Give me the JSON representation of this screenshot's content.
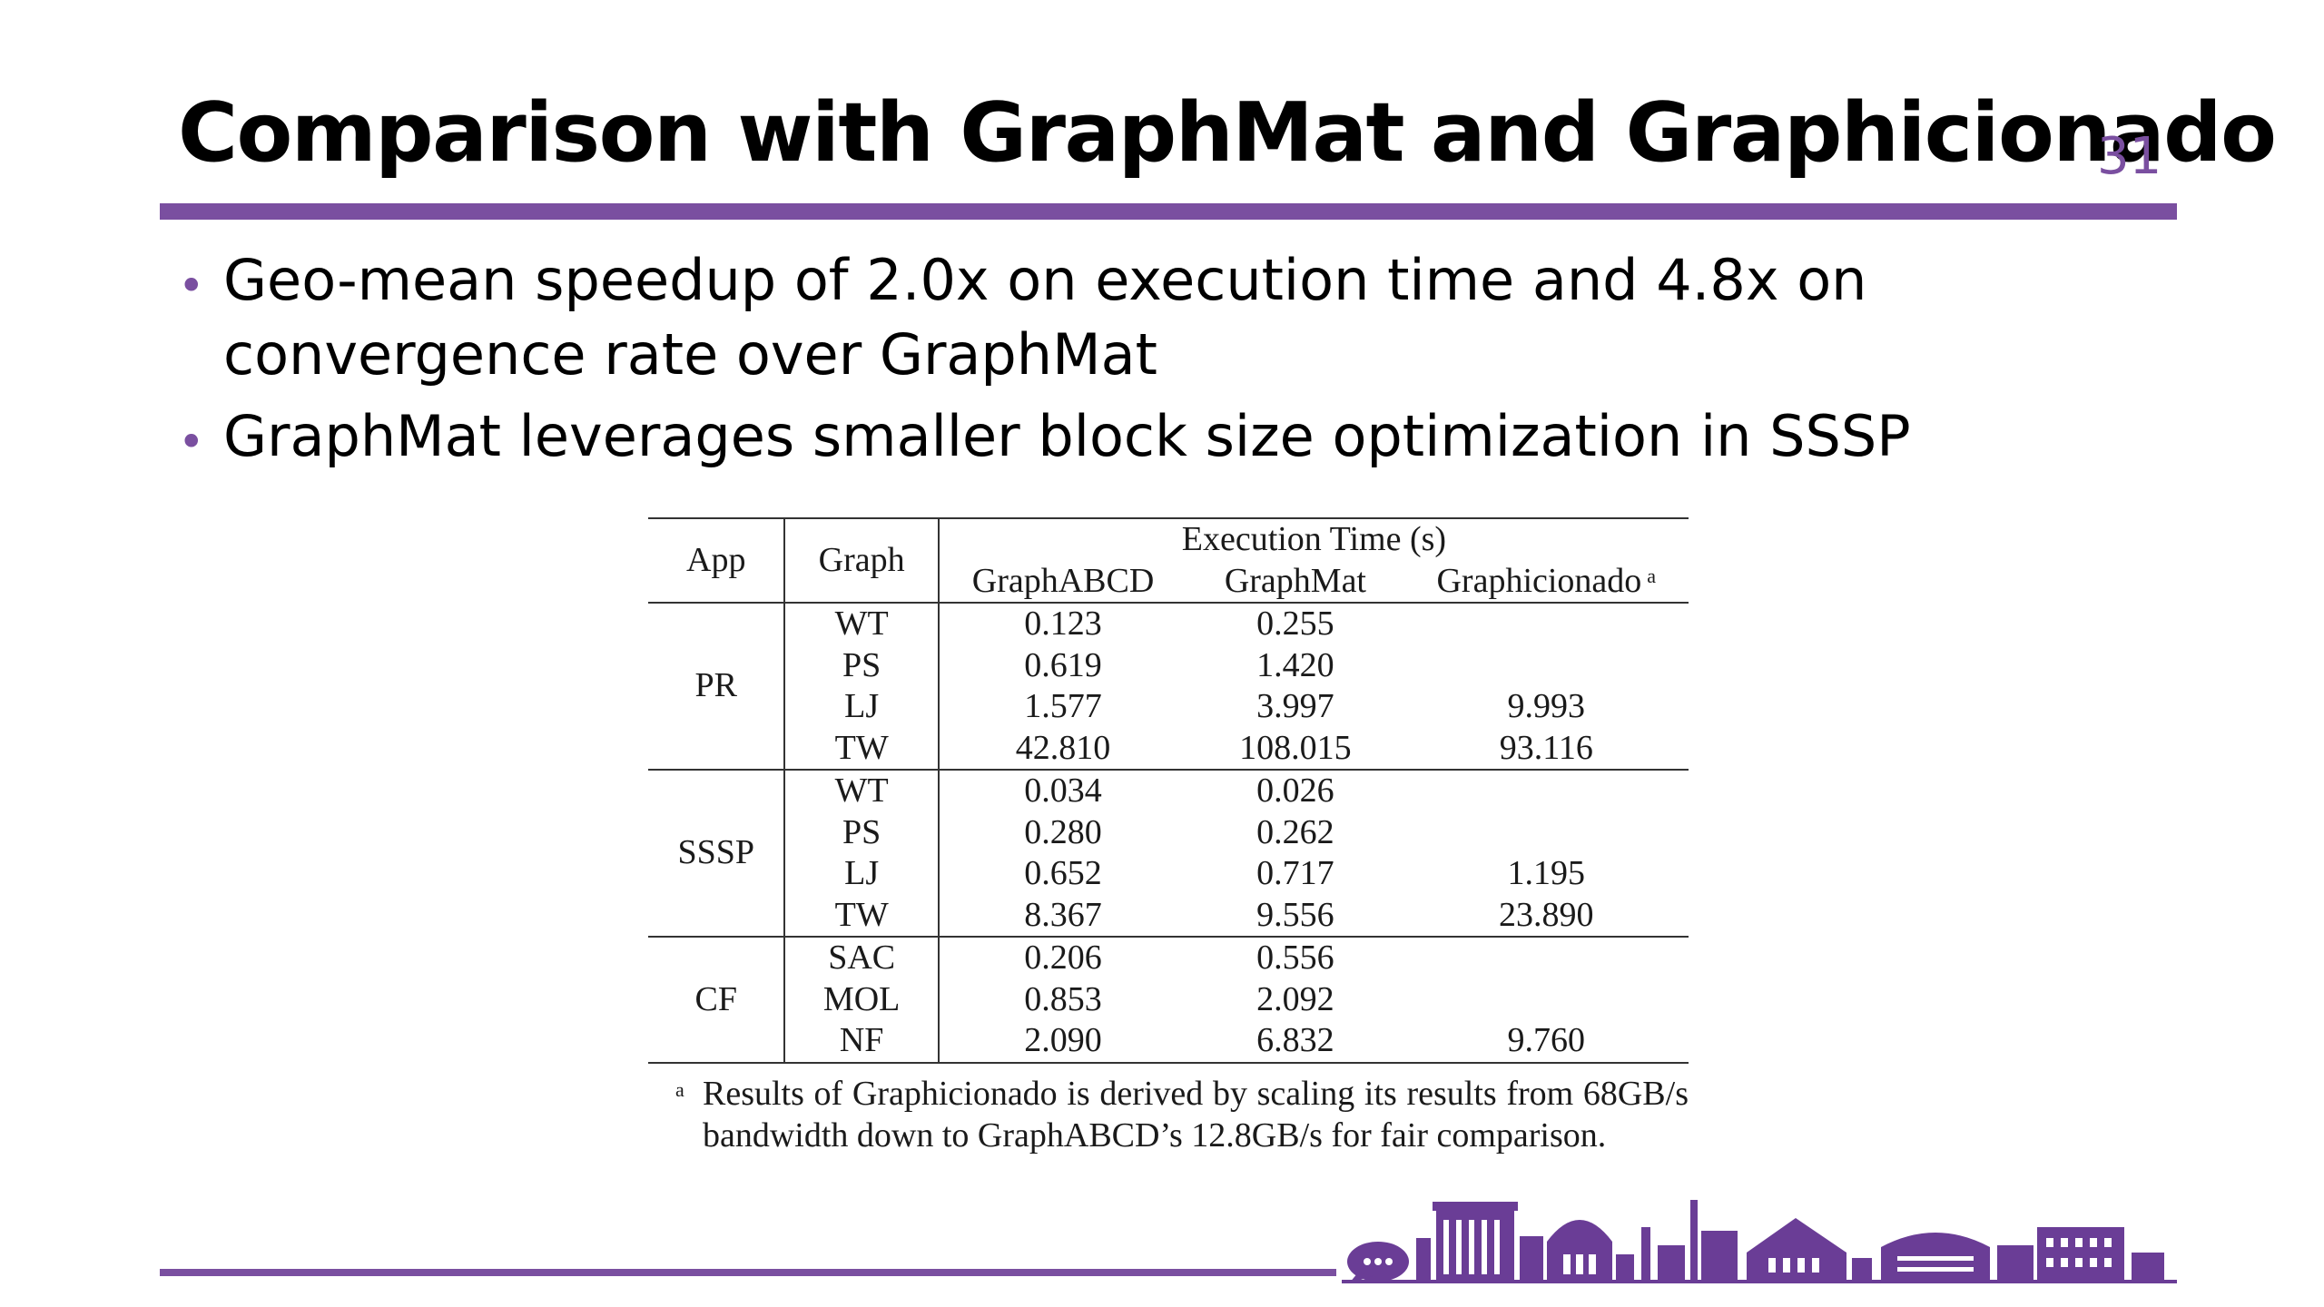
{
  "slide": {
    "title": "Comparison with GraphMat and Graphicionado",
    "page_number": "31"
  },
  "bullets": [
    {
      "text_line1": "Geo-mean speedup of 2.0x on execution time and 4.8x on",
      "text_line2": "convergence rate over GraphMat"
    },
    {
      "text_line1": "GraphMat leverages smaller block size optimization in SSSP",
      "text_line2": ""
    }
  ],
  "table": {
    "headers": {
      "app": "App",
      "graph": "Graph",
      "execution_time": "Execution Time (s)",
      "graphabcd": "GraphABCD",
      "graphmat": "GraphMat",
      "graphicionado": "Graphicionado",
      "footnote_marker": "a"
    },
    "groups": [
      {
        "app": "PR",
        "rows": [
          {
            "graph": "WT",
            "graphabcd": "0.123",
            "graphmat": "0.255",
            "graphicionado": "",
            "bold": "graphabcd"
          },
          {
            "graph": "PS",
            "graphabcd": "0.619",
            "graphmat": "1.420",
            "graphicionado": "",
            "bold": "graphabcd"
          },
          {
            "graph": "LJ",
            "graphabcd": "1.577",
            "graphmat": "3.997",
            "graphicionado": "9.993",
            "bold": "graphabcd"
          },
          {
            "graph": "TW",
            "graphabcd": "42.810",
            "graphmat": "108.015",
            "graphicionado": "93.116",
            "bold": "graphabcd"
          }
        ]
      },
      {
        "app": "SSSP",
        "rows": [
          {
            "graph": "WT",
            "graphabcd": "0.034",
            "graphmat": "0.026",
            "graphicionado": "",
            "bold": "graphmat"
          },
          {
            "graph": "PS",
            "graphabcd": "0.280",
            "graphmat": "0.262",
            "graphicionado": "",
            "bold": "graphmat"
          },
          {
            "graph": "LJ",
            "graphabcd": "0.652",
            "graphmat": "0.717",
            "graphicionado": "1.195",
            "bold": "graphabcd"
          },
          {
            "graph": "TW",
            "graphabcd": "8.367",
            "graphmat": "9.556",
            "graphicionado": "23.890",
            "bold": "graphabcd"
          }
        ]
      },
      {
        "app": "CF",
        "rows": [
          {
            "graph": "SAC",
            "graphabcd": "0.206",
            "graphmat": "0.556",
            "graphicionado": "",
            "bold": "graphabcd"
          },
          {
            "graph": "MOL",
            "graphabcd": "0.853",
            "graphmat": "2.092",
            "graphicionado": "",
            "bold": "graphabcd"
          },
          {
            "graph": "NF",
            "graphabcd": "2.090",
            "graphmat": "6.832",
            "graphicionado": "9.760",
            "bold": "graphabcd"
          }
        ]
      }
    ],
    "footnote": {
      "marker": "a",
      "text": "Results of Graphicionado is derived by scaling its results from 68GB/s bandwidth down to GraphABCD’s 12.8GB/s for fair comparison."
    }
  },
  "colors": {
    "accent": "#7a4fa0",
    "text": "#000000",
    "background": "#ffffff"
  },
  "icons": {
    "bullet": "bullet-dot",
    "footer": "campus-skyline-icon"
  }
}
